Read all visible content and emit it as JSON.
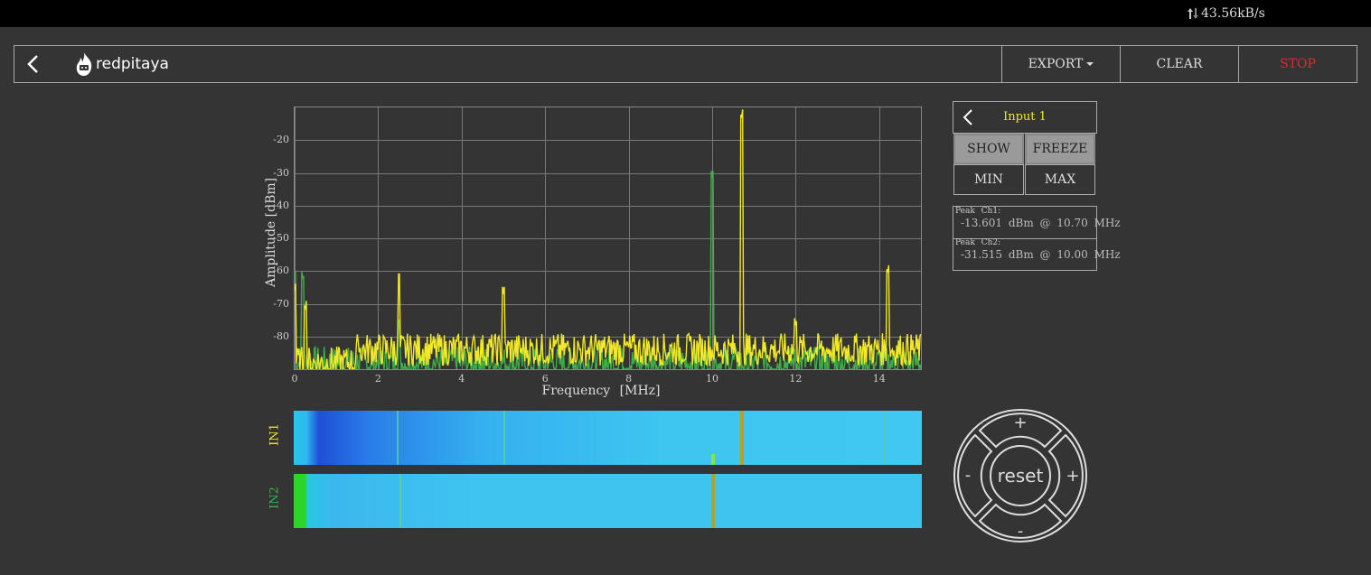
{
  "status": {
    "net_speed": "43.56kB/s"
  },
  "header": {
    "logo": "redpitaya",
    "export_label": "EXPORT",
    "clear_label": "CLEAR",
    "stop_label": "STOP"
  },
  "channel_panel": {
    "title": "Input 1",
    "show_label": "SHOW",
    "freeze_label": "FREEZE",
    "min_label": "MIN",
    "max_label": "MAX"
  },
  "peaks": [
    {
      "title": "Peak Ch1:",
      "value": "-13.601 dBm @ 10.70 MHz"
    },
    {
      "title": "Peak Ch2:",
      "value": "-31.515 dBm @ 10.00 MHz"
    }
  ],
  "waterfall": {
    "in1_label": "IN1",
    "in2_label": "IN2"
  },
  "zoom": {
    "reset_label": "reset",
    "plus_label": "+",
    "minus_label": "-"
  },
  "colors": {
    "ch1": "#f2e82a",
    "ch2": "#3fae49",
    "stop": "#e02a2a",
    "background": "#343434"
  },
  "chart_data": {
    "type": "line",
    "xlabel": "Frequency [MHz]",
    "ylabel": "Amplitude [dBm]",
    "xlim": [
      0,
      15
    ],
    "ylim": [
      -90,
      -10
    ],
    "xticks": [
      0,
      2,
      4,
      6,
      8,
      10,
      12,
      14
    ],
    "yticks": [
      -20,
      -30,
      -40,
      -50,
      -60,
      -70,
      -80
    ],
    "grid": true,
    "noise_floor_ch1": -84,
    "noise_floor_ch2": -88,
    "series": [
      {
        "color": "#f2e82a",
        "peaks": [
          [
            0.0,
            -66
          ],
          [
            0.25,
            -72
          ],
          [
            1.5,
            -84
          ],
          [
            2.5,
            -62
          ],
          [
            5.0,
            -67
          ],
          [
            10.7,
            -13.6
          ],
          [
            12.0,
            -77
          ],
          [
            14.2,
            -61
          ]
        ]
      },
      {
        "color": "#3fae49",
        "peaks": [
          [
            0.0,
            -62
          ],
          [
            0.2,
            -63
          ],
          [
            2.5,
            -76
          ],
          [
            10.0,
            -31.5
          ]
        ]
      }
    ]
  }
}
